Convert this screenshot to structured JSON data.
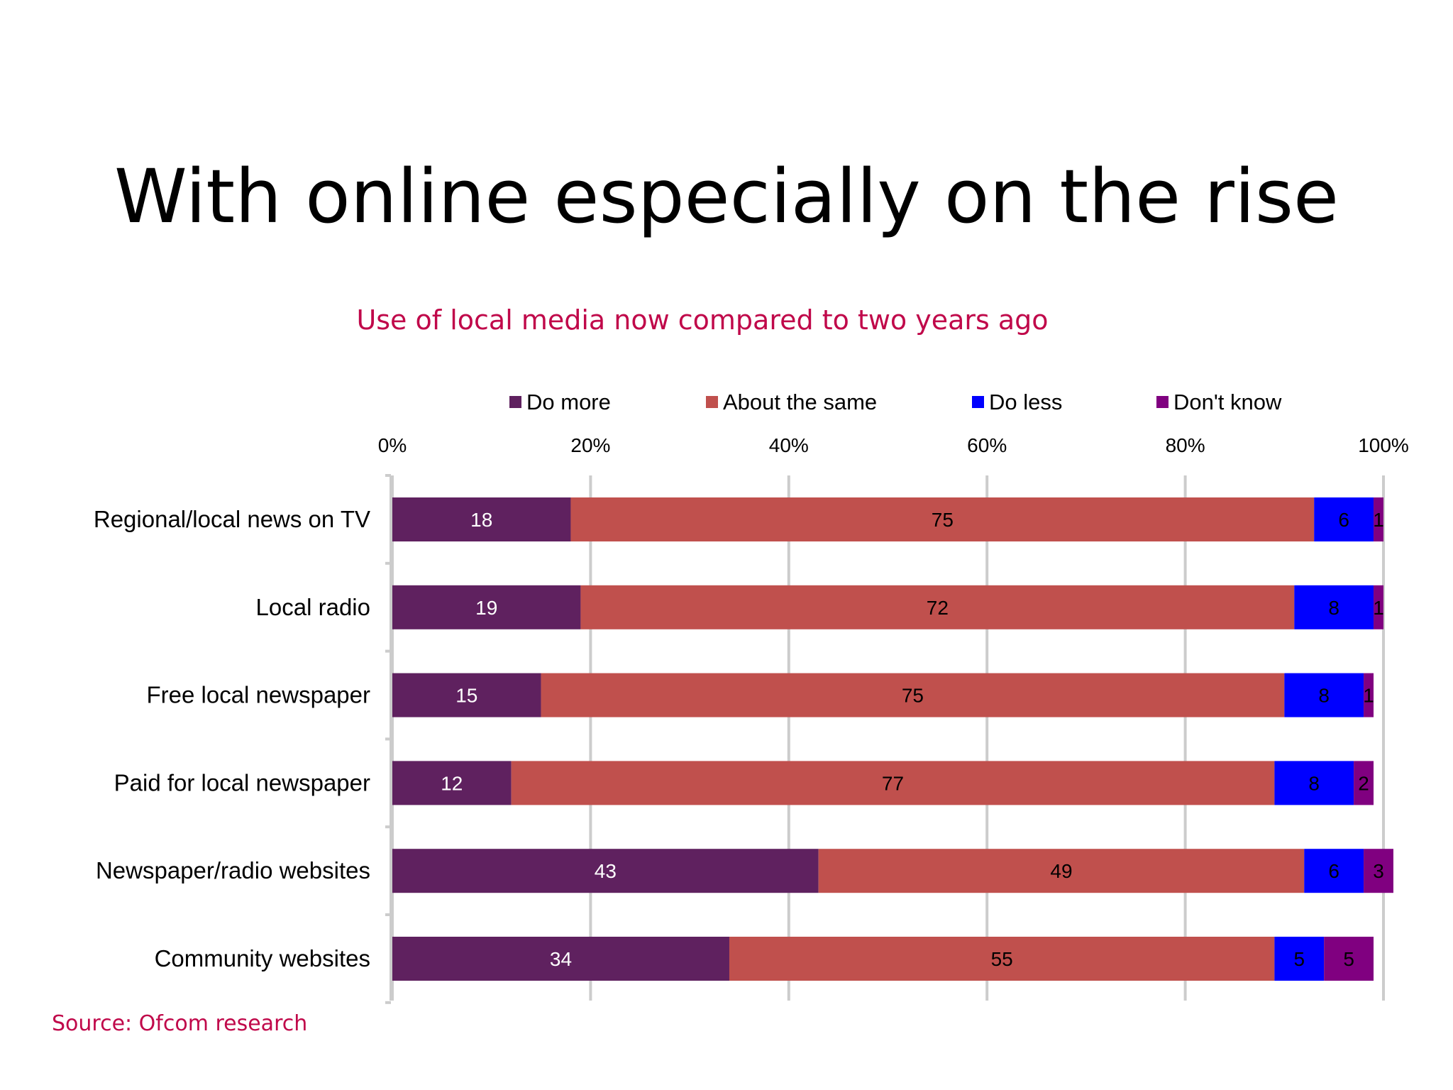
{
  "slide": {
    "title": "With online especially on the rise",
    "source": "Source: Ofcom research"
  },
  "chart_data": {
    "type": "bar",
    "orientation": "horizontal",
    "stacked": "percent",
    "title": "Use of local media now compared to two years ago",
    "xlabel": "",
    "ylabel": "",
    "xlim": [
      0,
      100
    ],
    "x_ticks": [
      "0%",
      "20%",
      "40%",
      "60%",
      "80%",
      "100%"
    ],
    "grid": true,
    "legend_position": "top",
    "categories": [
      "Regional/local news on TV",
      "Local radio",
      "Free local newspaper",
      "Paid for local newspaper",
      "Newspaper/radio websites",
      "Community websites"
    ],
    "series": [
      {
        "name": "Do more",
        "color": "#5F215F",
        "label_color": "#ffffff",
        "values": [
          18,
          19,
          15,
          12,
          43,
          34
        ]
      },
      {
        "name": "About the same",
        "color": "#C0504D",
        "label_color": "#000000",
        "values": [
          75,
          72,
          75,
          77,
          49,
          55
        ]
      },
      {
        "name": "Do less",
        "color": "#0000FF",
        "label_color": "#000000",
        "values": [
          6,
          8,
          8,
          8,
          6,
          5
        ]
      },
      {
        "name": "Don't know",
        "color": "#800080",
        "label_color": "#000000",
        "values": [
          1,
          1,
          1,
          2,
          3,
          5
        ]
      }
    ]
  }
}
